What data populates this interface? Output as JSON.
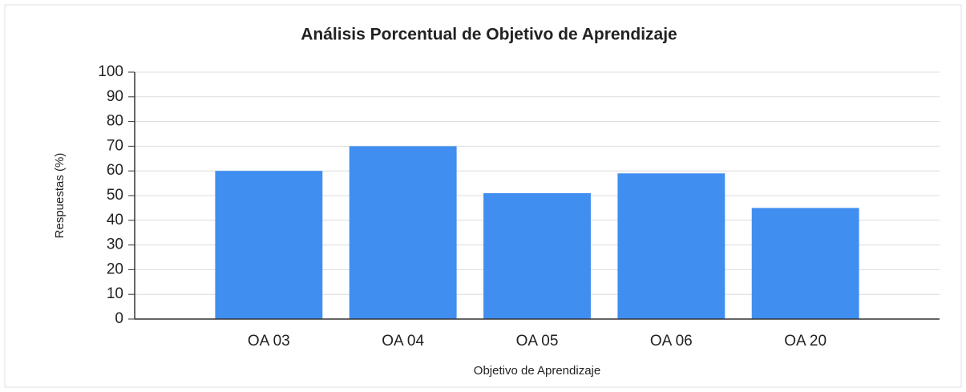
{
  "chart_data": {
    "type": "bar",
    "title": "Análisis Porcentual de Objetivo de Aprendizaje",
    "x_label": "Objetivo de Aprendizaje",
    "y_label": "Respuestas (%)",
    "categories": [
      "OA 03",
      "OA 04",
      "OA 05",
      "OA 06",
      "OA 20"
    ],
    "values": [
      60,
      70,
      51,
      59,
      45
    ],
    "color": "#3f8ef0",
    "ylim": [
      0,
      100
    ],
    "yticks": [
      0,
      10,
      20,
      30,
      40,
      50,
      60,
      70,
      80,
      90,
      100
    ],
    "grid": true
  }
}
